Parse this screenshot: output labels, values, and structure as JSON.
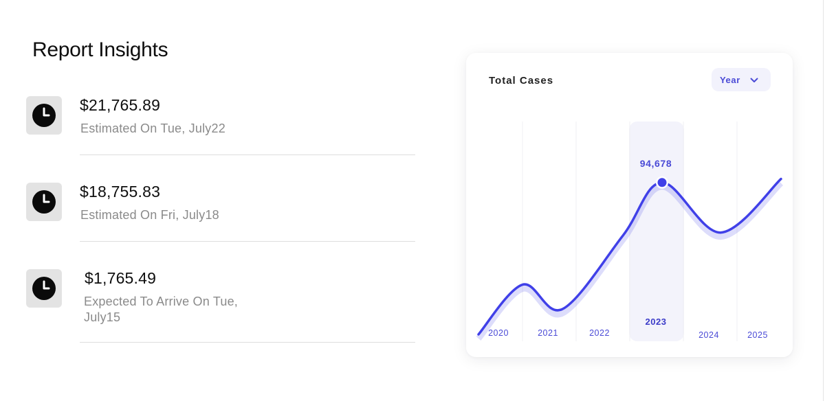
{
  "report": {
    "title": "Report Insights",
    "items": [
      {
        "amount": "$21,765.89",
        "description": "Estimated On Tue, July22",
        "icon": "clock-icon"
      },
      {
        "amount": "$18,755.83",
        "description": "Estimated On Fri, July18",
        "icon": "clock-icon"
      },
      {
        "amount": "$1,765.49",
        "description": "Expected To Arrive On Tue, July15",
        "icon": "clock-icon"
      }
    ]
  },
  "card": {
    "title": "Total Cases",
    "period_select": {
      "value": "Year",
      "icon": "chevron-down-icon"
    }
  },
  "colors": {
    "accent": "#4040e8",
    "highlight_band": "#f3f3fb",
    "muted_text": "#8a8a8a"
  },
  "chart_data": {
    "type": "line",
    "categories": [
      "2020",
      "2021",
      "2022",
      "2023",
      "2024",
      "2025"
    ],
    "highlighted_category": "2023",
    "highlight_value": "94,678",
    "series": [
      {
        "values": [
          28000,
          12000,
          60000,
          94678,
          62000,
          97000
        ]
      }
    ],
    "ylim": [
      0,
      130000
    ],
    "grid": "vertical",
    "legend": "none"
  }
}
